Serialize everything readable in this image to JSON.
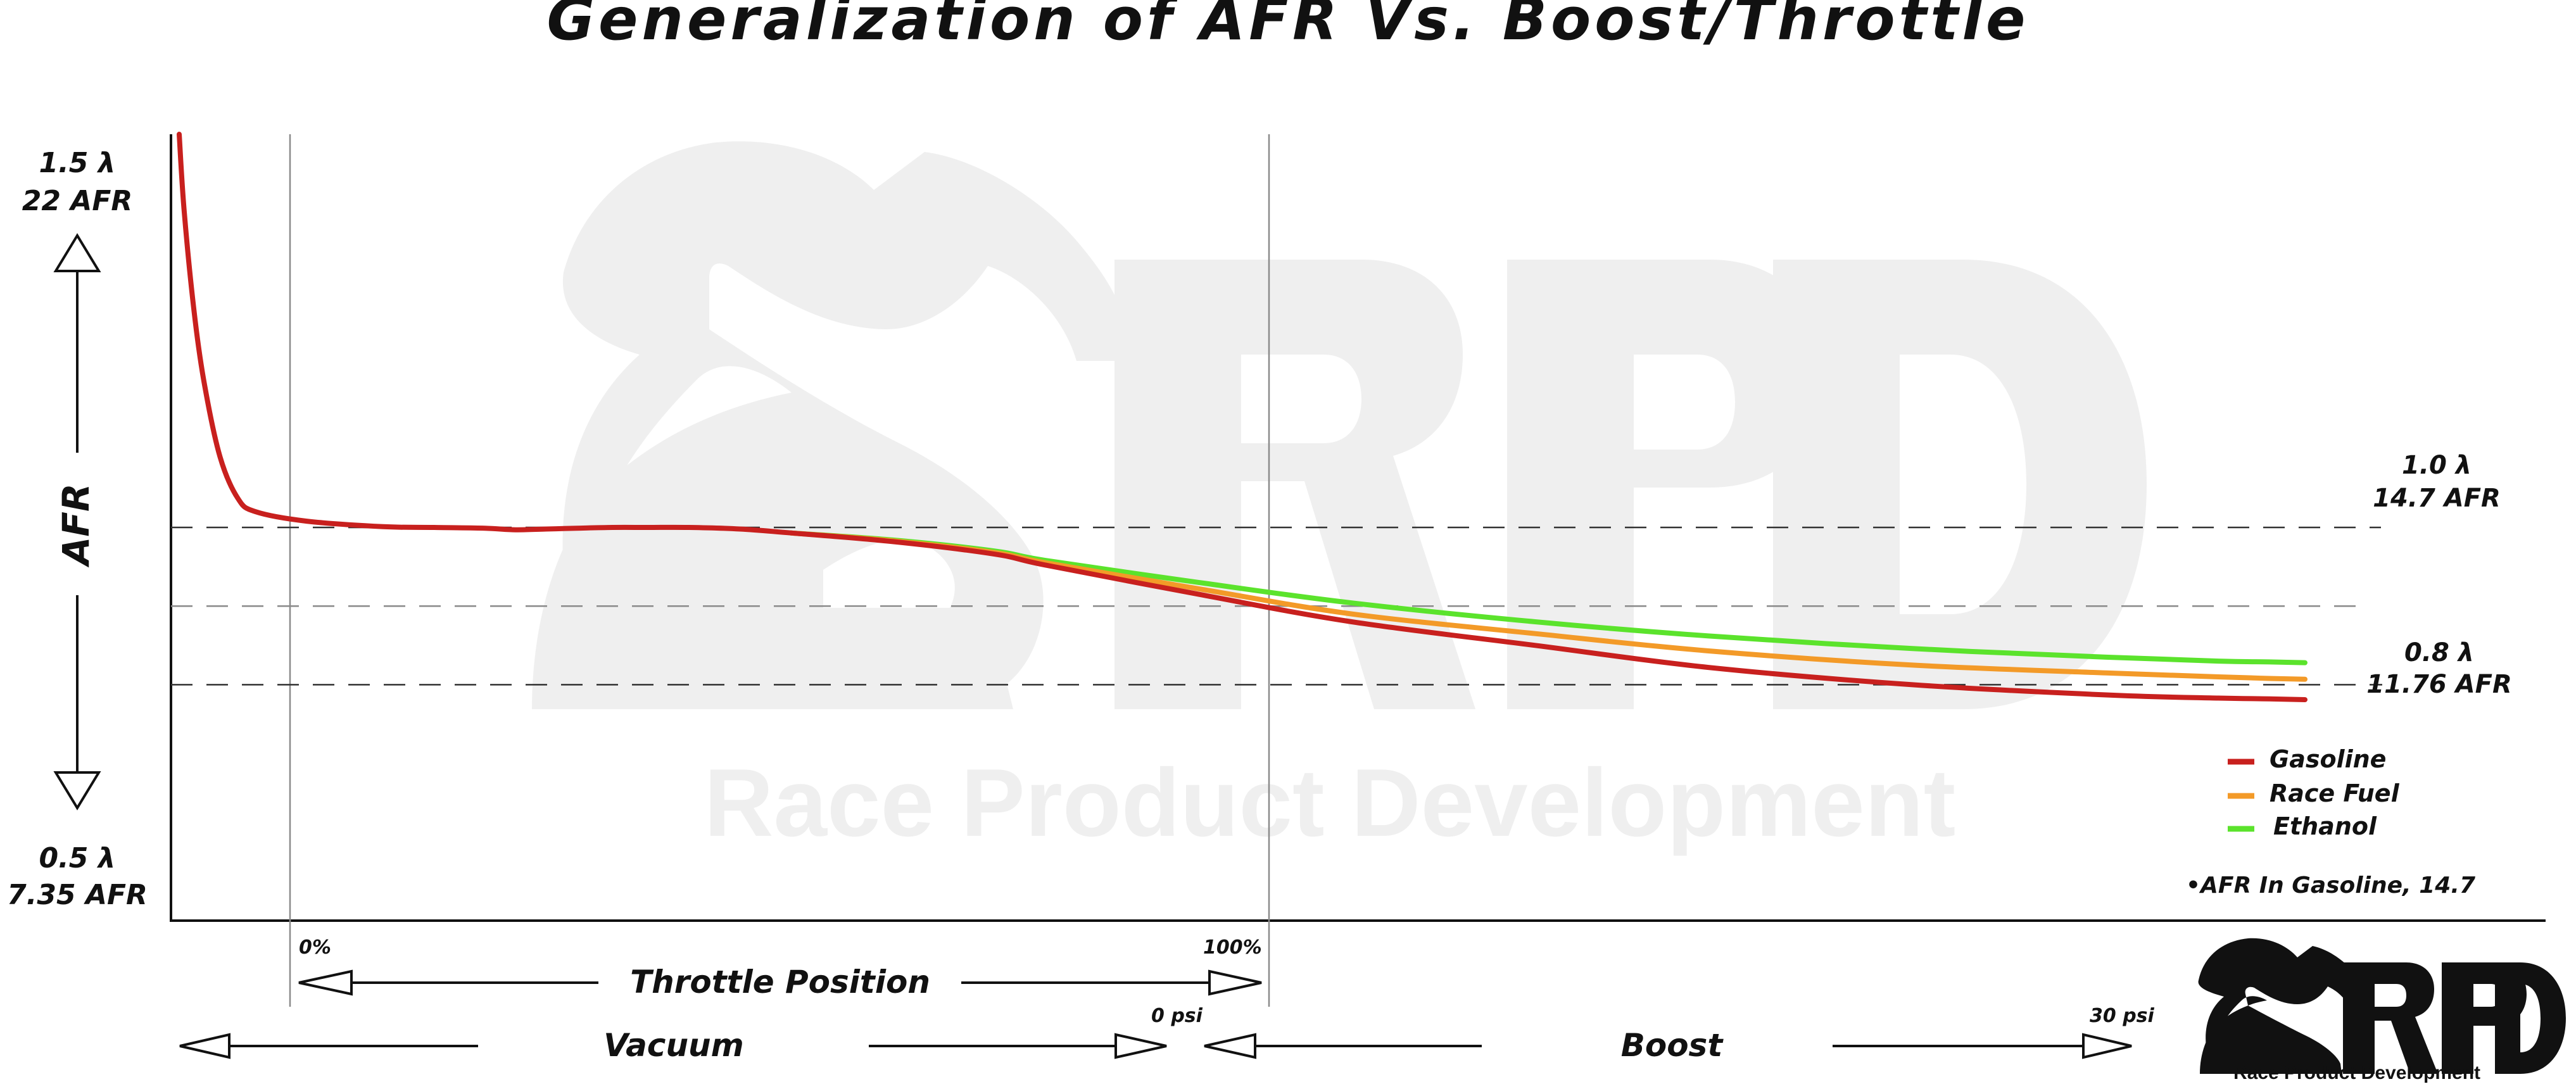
{
  "chart_data": {
    "type": "line",
    "title": "Generalization of AFR Vs. Boost/Throttle",
    "ylabel": "AFR",
    "y_axis": {
      "top_lambda": "1.5 λ",
      "top_afr": "22 AFR",
      "bottom_lambda": "0.5 λ",
      "bottom_afr": "7.35 AFR",
      "ylim": [
        0.5,
        1.5
      ]
    },
    "reference_lines": [
      {
        "lambda_label": "1.0 λ",
        "afr_label": "14.7 AFR",
        "value": 1.0
      },
      {
        "lambda_label": "",
        "afr_label": "",
        "value": 0.9
      },
      {
        "lambda_label": "0.8 λ",
        "afr_label": "11.76 AFR",
        "value": 0.8
      }
    ],
    "x_axis": {
      "throttle_label": "Throttle Position",
      "throttle_start": "0%",
      "throttle_end": "100%",
      "vacuum_label": "Vacuum",
      "boost_label": "Boost",
      "boost_start": "0 psi",
      "boost_end": "30 psi"
    },
    "series": [
      {
        "name": "Gasoline",
        "color": "#c8201e",
        "x": [
          0,
          1,
          3,
          5,
          8,
          11.5,
          15,
          25,
          40,
          50,
          60,
          66,
          72,
          78,
          85,
          92,
          100,
          110,
          120,
          140,
          160,
          170,
          200,
          230,
          266,
          300,
          340,
          378,
          400,
          410,
          417
        ],
        "y": [
          1.5,
          1.4,
          1.27,
          1.18,
          1.09,
          1.037,
          1.02,
          1.008,
          1.001,
          1.0,
          0.999,
          0.997,
          0.998,
          0.999,
          1.0,
          1.0,
          1.0,
          0.998,
          0.993,
          0.982,
          0.966,
          0.952,
          0.915,
          0.88,
          0.85,
          0.822,
          0.8,
          0.787,
          0.783,
          0.782,
          0.781
        ]
      },
      {
        "name": "Race Fuel",
        "color": "#f39a28",
        "x": [
          120,
          140,
          160,
          170,
          200,
          230,
          266,
          300,
          340,
          378,
          400,
          410,
          417
        ],
        "y": [
          0.993,
          0.983,
          0.968,
          0.955,
          0.922,
          0.89,
          0.865,
          0.843,
          0.825,
          0.815,
          0.81,
          0.808,
          0.807
        ]
      },
      {
        "name": "Ethanol",
        "color": "#5be32c",
        "x": [
          120,
          140,
          160,
          170,
          200,
          230,
          266,
          300,
          340,
          378,
          400,
          410,
          417
        ],
        "y": [
          0.993,
          0.984,
          0.97,
          0.958,
          0.93,
          0.904,
          0.88,
          0.862,
          0.846,
          0.835,
          0.83,
          0.829,
          0.828
        ]
      }
    ],
    "legend_position": "bottom-right",
    "note": "•AFR In Gasoline, 14.7",
    "grid": false
  },
  "watermark": {
    "logo_text": "RPD",
    "tagline": "Race Product Development"
  },
  "corner_logo": {
    "logo_text": "RPD",
    "tagline": "Race Product Development"
  },
  "colors": {
    "gasoline": "#c8201e",
    "race_fuel": "#f39a28",
    "ethanol": "#5be32c",
    "watermark": "#efefef",
    "ink": "#111111"
  }
}
